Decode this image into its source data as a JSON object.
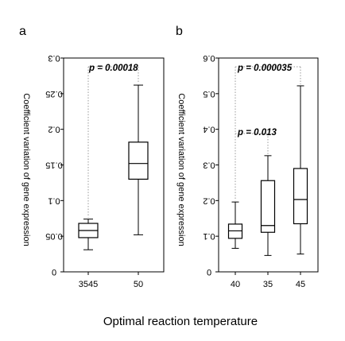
{
  "figure": {
    "x_axis_title": "Optimal reaction temperature"
  },
  "chart_data": [
    {
      "type": "box",
      "panel_label": "a",
      "ylabel": "Coefficient variation of gene expression",
      "ylim": [
        0,
        0.3
      ],
      "yticks": [
        0,
        0.05,
        0.1,
        0.15,
        0.2,
        0.25,
        0.3
      ],
      "ytick_labels": [
        "0",
        "0.05",
        "0.1",
        "0.15",
        "0.2",
        "0.25",
        "0.3"
      ],
      "y_tick_rotation_deg": 180,
      "grid": false,
      "categories": [
        "3545",
        "50"
      ],
      "boxes": [
        {
          "category": "3545",
          "min": 0.031,
          "q1": 0.048,
          "median": 0.058,
          "q3": 0.068,
          "max": 0.074
        },
        {
          "category": "50",
          "min": 0.052,
          "q1": 0.13,
          "median": 0.152,
          "q3": 0.182,
          "max": 0.262
        }
      ],
      "annotations": [
        {
          "text": "p = 0.00018",
          "from_category": "3545",
          "to_category": "50"
        }
      ]
    },
    {
      "type": "box",
      "panel_label": "b",
      "ylabel": "Coefficient variation of gene expression",
      "ylim": [
        0,
        0.6
      ],
      "yticks": [
        0,
        0.1,
        0.2,
        0.3,
        0.4,
        0.5,
        0.6
      ],
      "ytick_labels": [
        "0",
        "0.1",
        "0.2",
        "0.3",
        "0.4",
        "0.5",
        "0.6"
      ],
      "y_tick_rotation_deg": 180,
      "grid": false,
      "categories": [
        "40",
        "35",
        "45"
      ],
      "boxes": [
        {
          "category": "40",
          "min": 0.066,
          "q1": 0.094,
          "median": 0.115,
          "q3": 0.134,
          "max": 0.196
        },
        {
          "category": "35",
          "min": 0.046,
          "q1": 0.111,
          "median": 0.13,
          "q3": 0.256,
          "max": 0.326
        },
        {
          "category": "45",
          "min": 0.05,
          "q1": 0.135,
          "median": 0.203,
          "q3": 0.29,
          "max": 0.522
        }
      ],
      "annotations": [
        {
          "text": "p = 0.000035",
          "from_category": "40",
          "to_category": "45"
        },
        {
          "text": "p = 0.013",
          "from_category": "40",
          "to_category": "35"
        }
      ]
    }
  ]
}
